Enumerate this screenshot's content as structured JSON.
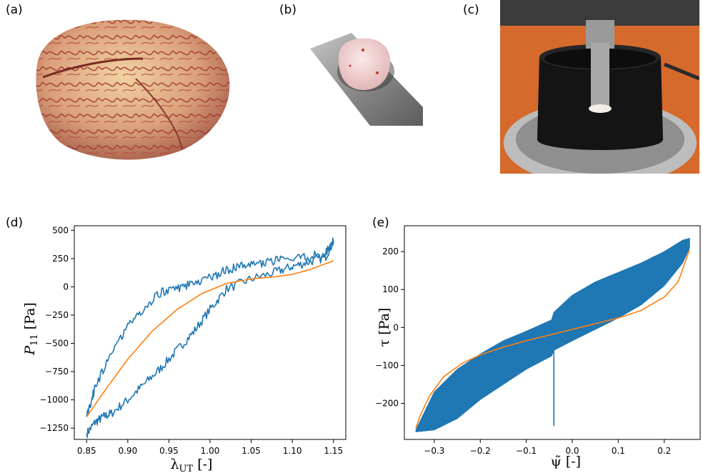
{
  "panels": {
    "a": {
      "label": "(a)"
    },
    "b": {
      "label": "(b)"
    },
    "c": {
      "label": "(c)"
    },
    "d": {
      "label": "(d)"
    },
    "e": {
      "label": "(e)"
    }
  },
  "colors": {
    "experiment": "#1f77b4",
    "model": "#ff7f0e"
  },
  "chart_data": [
    {
      "id": "d",
      "type": "line",
      "xlabel": "λUT [-]",
      "xlabel_main": "λ",
      "xlabel_sub": "UT",
      "xlabel_unit": " [-]",
      "ylabel": "P11 [Pa]",
      "ylabel_main": "P",
      "ylabel_sub": "11",
      "ylabel_unit": " [Pa]",
      "xlim": [
        0.835,
        1.165
      ],
      "ylim": [
        -1350,
        540
      ],
      "xticks": [
        0.85,
        0.9,
        0.95,
        1.0,
        1.05,
        1.1,
        1.15
      ],
      "xtick_labels": [
        "0.85",
        "0.90",
        "0.95",
        "1.00",
        "1.05",
        "1.10",
        "1.15"
      ],
      "yticks": [
        500,
        250,
        0,
        -250,
        -500,
        -750,
        -1000,
        -1250
      ],
      "ytick_labels": [
        "500",
        "250",
        "0",
        "−250",
        "−500",
        "−750",
        "−1000",
        "−1250"
      ],
      "series": [
        {
          "color_key": "experiment",
          "noise": 40,
          "x": [
            0.85,
            0.86,
            0.87,
            0.88,
            0.9,
            0.92,
            0.94,
            0.96,
            0.98,
            1.0,
            1.02,
            1.05,
            1.08,
            1.1,
            1.12,
            1.14,
            1.15,
            1.14,
            1.12,
            1.1,
            1.08,
            1.06,
            1.04,
            1.02,
            1.0,
            0.98,
            0.96,
            0.94,
            0.92,
            0.9,
            0.88,
            0.86,
            0.85
          ],
          "y": [
            -1300,
            -1200,
            -1150,
            -1120,
            -1000,
            -860,
            -720,
            -560,
            -400,
            -200,
            -20,
            70,
            130,
            180,
            220,
            260,
            400,
            290,
            270,
            240,
            230,
            200,
            190,
            150,
            80,
            40,
            -20,
            -50,
            -180,
            -360,
            -560,
            -900,
            -1150
          ]
        },
        {
          "color_key": "model",
          "noise": 0,
          "x": [
            0.85,
            0.87,
            0.9,
            0.93,
            0.96,
            0.99,
            1.02,
            1.05,
            1.08,
            1.1,
            1.12,
            1.15
          ],
          "y": [
            -1150,
            -940,
            -640,
            -390,
            -200,
            -60,
            30,
            70,
            90,
            110,
            150,
            230
          ]
        }
      ]
    },
    {
      "id": "e",
      "type": "line",
      "xlabel": "ψ̃ [-]",
      "xlabel_main": "ψ̃",
      "xlabel_unit": " [-]",
      "ylabel": "τ [Pa]",
      "ylabel_main": "τ",
      "ylabel_unit": " [Pa]",
      "xlim": [
        -0.365,
        0.278
      ],
      "ylim": [
        -295,
        268
      ],
      "xticks": [
        -0.3,
        -0.2,
        -0.1,
        0.0,
        0.1,
        0.2
      ],
      "xtick_labels": [
        "−0.3",
        "−0.2",
        "−0.1",
        "0.0",
        "0.1",
        "0.2"
      ],
      "yticks": [
        200,
        100,
        0,
        -100,
        -200
      ],
      "ytick_labels": [
        "200",
        "100",
        "0",
        "−100",
        "−200"
      ],
      "series": [
        {
          "color_key": "experiment",
          "band": true,
          "upper_x": [
            -0.34,
            -0.3,
            -0.25,
            -0.2,
            -0.15,
            -0.1,
            -0.045,
            -0.04,
            0.0,
            0.05,
            0.1,
            0.15,
            0.2,
            0.24,
            0.255
          ],
          "upper_y": [
            -270,
            -170,
            -110,
            -70,
            -35,
            -10,
            20,
            40,
            85,
            120,
            145,
            170,
            200,
            230,
            235
          ],
          "lower_x": [
            -0.34,
            -0.3,
            -0.25,
            -0.2,
            -0.15,
            -0.1,
            -0.045,
            -0.04,
            0.0,
            0.05,
            0.1,
            0.15,
            0.2,
            0.24,
            0.255
          ],
          "lower_y": [
            -275,
            -270,
            -240,
            -190,
            -150,
            -110,
            -75,
            -60,
            -35,
            -5,
            25,
            60,
            110,
            170,
            210
          ],
          "spike_x": -0.04,
          "spike_y": [
            -50,
            -260
          ]
        },
        {
          "color_key": "model",
          "x": [
            -0.34,
            -0.33,
            -0.31,
            -0.28,
            -0.24,
            -0.2,
            -0.15,
            -0.1,
            -0.05,
            0.0,
            0.05,
            0.1,
            0.15,
            0.2,
            0.23,
            0.255
          ],
          "y": [
            -265,
            -230,
            -180,
            -130,
            -95,
            -72,
            -52,
            -35,
            -20,
            -5,
            10,
            25,
            45,
            80,
            120,
            205
          ]
        }
      ]
    }
  ]
}
